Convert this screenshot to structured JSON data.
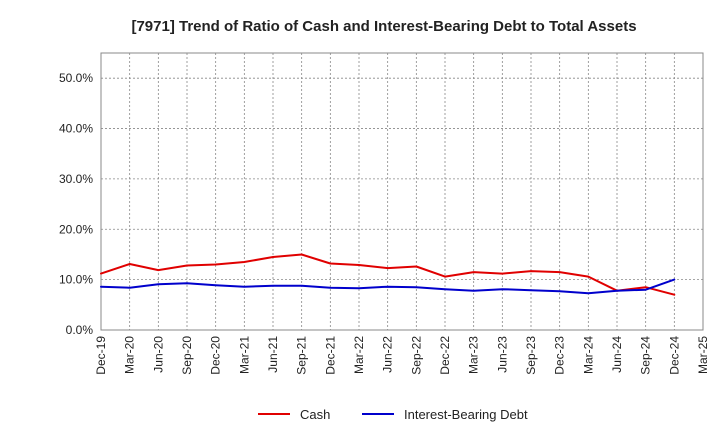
{
  "chart_data": {
    "type": "line",
    "title": "[7971]  Trend of Ratio of Cash and Interest-Bearing Debt to Total Assets",
    "xlabel": "",
    "ylabel": "",
    "x": [
      "Dec-19",
      "Mar-20",
      "Jun-20",
      "Sep-20",
      "Dec-20",
      "Mar-21",
      "Jun-21",
      "Sep-21",
      "Dec-21",
      "Mar-22",
      "Jun-22",
      "Sep-22",
      "Dec-22",
      "Mar-23",
      "Jun-23",
      "Sep-23",
      "Dec-23",
      "Mar-24",
      "Jun-24",
      "Sep-24",
      "Dec-24",
      "Mar-25"
    ],
    "ylim": [
      0,
      55
    ],
    "yticks": [
      0,
      10,
      20,
      30,
      40,
      50
    ],
    "ytick_labels": [
      "0.0%",
      "10.0%",
      "20.0%",
      "30.0%",
      "40.0%",
      "50.0%"
    ],
    "grid": true,
    "legend_position": "bottom",
    "series": [
      {
        "name": "Cash",
        "color": "#e00000",
        "values": [
          11.2,
          13.1,
          11.9,
          12.8,
          13.0,
          13.5,
          14.5,
          15.0,
          13.2,
          12.9,
          12.3,
          12.6,
          10.6,
          11.5,
          11.2,
          11.7,
          11.5,
          10.6,
          7.8,
          8.5,
          7.0,
          null
        ]
      },
      {
        "name": "Interest-Bearing Debt",
        "color": "#0000cc",
        "values": [
          8.6,
          8.4,
          9.1,
          9.3,
          8.9,
          8.6,
          8.8,
          8.8,
          8.4,
          8.3,
          8.6,
          8.5,
          8.1,
          7.8,
          8.1,
          7.9,
          7.7,
          7.3,
          7.8,
          8.0,
          10.0,
          null
        ]
      }
    ]
  }
}
